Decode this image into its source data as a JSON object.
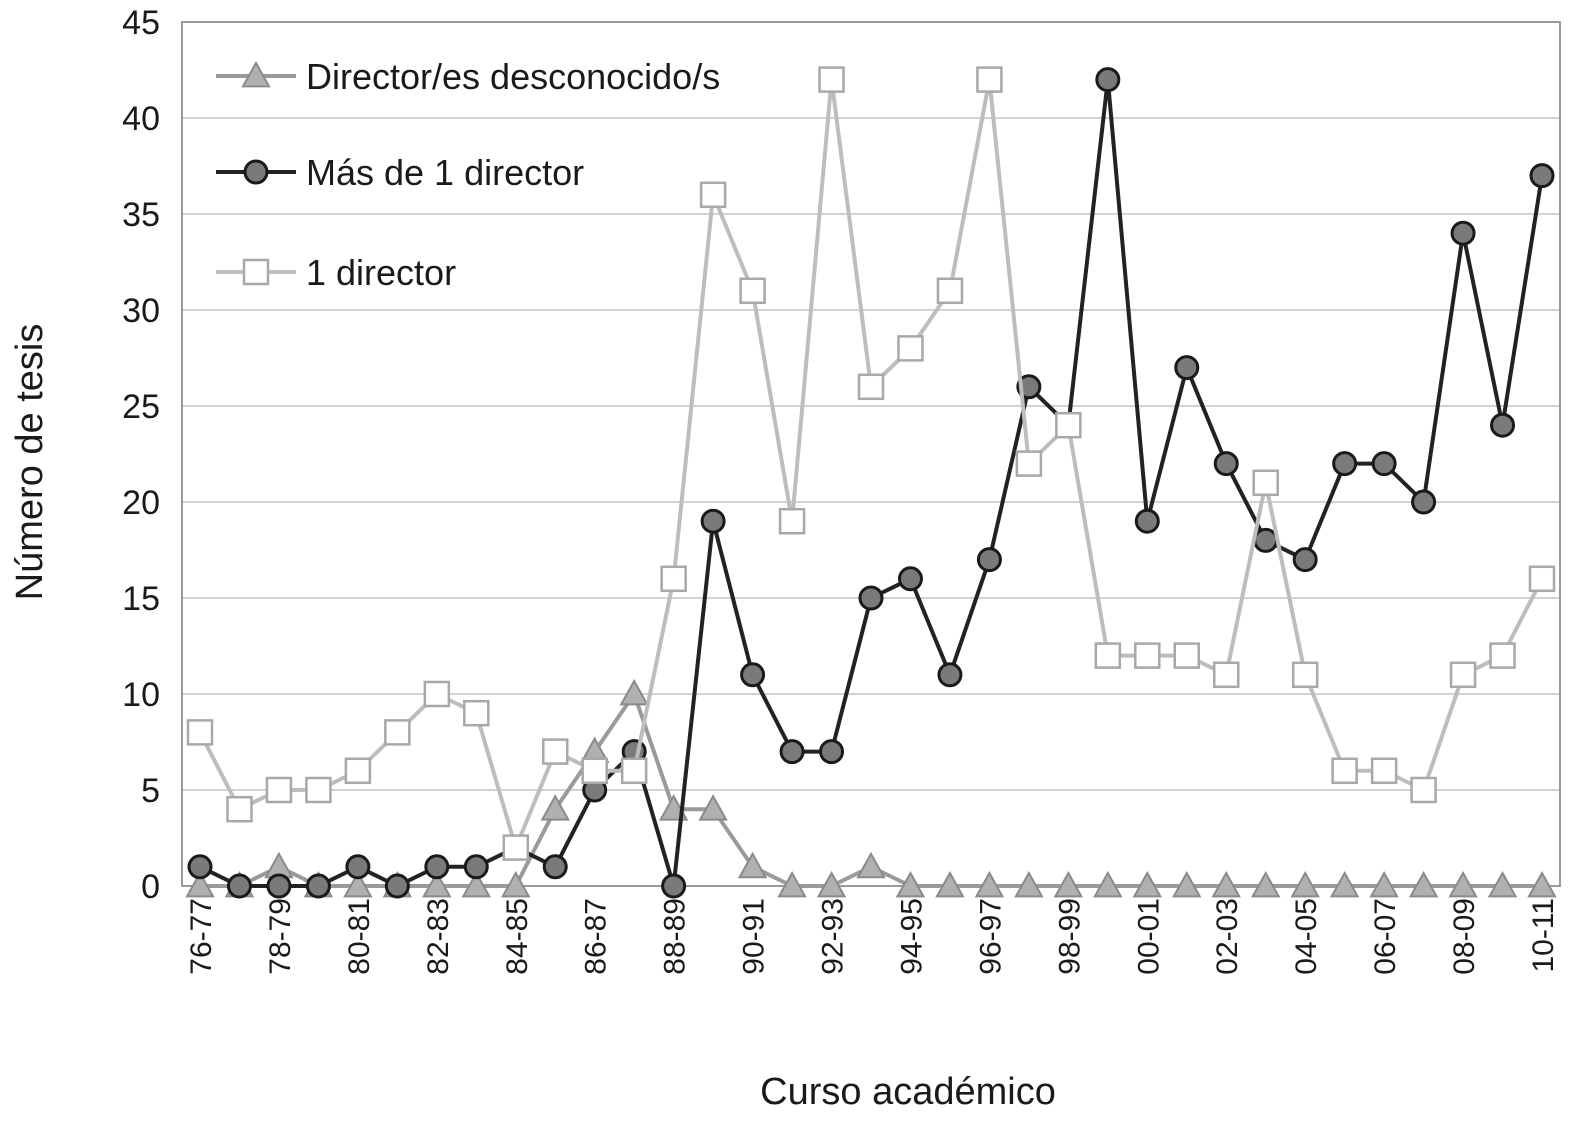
{
  "chart_data": {
    "type": "line",
    "xlabel": "Curso académico",
    "ylabel": "Número de tesis",
    "ylim": [
      0,
      45
    ],
    "yticks": [
      0,
      5,
      10,
      15,
      20,
      25,
      30,
      35,
      40,
      45
    ],
    "grid": "horizontal",
    "legend_position": "top-left",
    "categories": [
      "76-77",
      "77-78",
      "78-79",
      "79-80",
      "80-81",
      "81-82",
      "82-83",
      "83-84",
      "84-85",
      "85-86",
      "86-87",
      "87-88",
      "88-89",
      "89-90",
      "90-91",
      "91-92",
      "92-93",
      "93-94",
      "94-95",
      "95-96",
      "96-97",
      "97-98",
      "98-99",
      "99-00",
      "00-01",
      "01-02",
      "02-03",
      "03-04",
      "04-05",
      "05-06",
      "06-07",
      "07-08",
      "08-09",
      "09-10",
      "10-11"
    ],
    "tick_labels": [
      "76-77",
      "78-79",
      "80-81",
      "82-83",
      "84-85",
      "86-87",
      "88-89",
      "90-91",
      "92-93",
      "94-95",
      "96-97",
      "98-99",
      "00-01",
      "02-03",
      "04-05",
      "06-07",
      "08-09",
      "10-11"
    ],
    "series": [
      {
        "name": "Director/es desconocido/s",
        "marker": "triangle",
        "color": "#a6a6a6",
        "values": [
          0,
          0,
          1,
          0,
          0,
          0,
          0,
          0,
          0,
          4,
          7,
          10,
          4,
          4,
          1,
          0,
          0,
          1,
          0,
          0,
          0,
          0,
          0,
          0,
          0,
          0,
          0,
          0,
          0,
          0,
          0,
          0,
          0,
          0,
          0
        ]
      },
      {
        "name": "Más de 1 director",
        "marker": "circle",
        "color": "#222222",
        "values": [
          1,
          0,
          0,
          0,
          1,
          0,
          1,
          1,
          2,
          1,
          5,
          7,
          0,
          19,
          11,
          7,
          7,
          15,
          16,
          11,
          17,
          26,
          24,
          42,
          19,
          27,
          22,
          18,
          17,
          22,
          22,
          20,
          34,
          24,
          37
        ]
      },
      {
        "name": "1 director",
        "marker": "square",
        "color": "#bdbdbd",
        "values": [
          8,
          4,
          5,
          5,
          6,
          8,
          10,
          9,
          2,
          7,
          6,
          6,
          16,
          36,
          31,
          19,
          42,
          26,
          28,
          31,
          42,
          22,
          24,
          12,
          12,
          12,
          11,
          21,
          11,
          6,
          6,
          5,
          11,
          12,
          16
        ]
      }
    ],
    "legend_order": [
      0,
      1,
      2
    ]
  }
}
